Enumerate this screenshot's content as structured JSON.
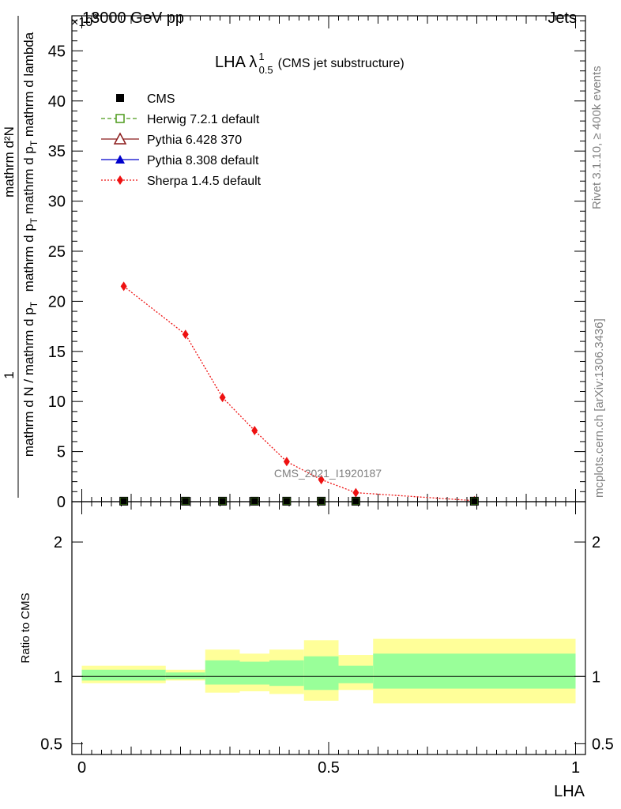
{
  "header": {
    "left": "13000 GeV pp",
    "right": "Jets",
    "exponent": "×10",
    "exponent_power": "6"
  },
  "side_text": {
    "rivet": "Rivet 3.1.10, ≥ 400k events",
    "mcplots": "mcplots.cern.ch [arXiv:1306.3436]"
  },
  "watermark": "CMS_2021_I1920187",
  "plot_title": {
    "main": "LHA λ",
    "sup": "1",
    "sub": "0.5",
    "suffix": "(CMS jet substructure)"
  },
  "legend": [
    {
      "name": "CMS",
      "color": "#000000",
      "marker": "square-filled",
      "line": "none"
    },
    {
      "name": "Herwig 7.2.1 default",
      "color": "#4c9a1a",
      "marker": "square-open",
      "line": "dashed"
    },
    {
      "name": "Pythia 6.428 370",
      "color": "#8b1a1a",
      "marker": "triangle-open",
      "line": "solid"
    },
    {
      "name": "Pythia 8.308 default",
      "color": "#0000cc",
      "marker": "triangle-filled",
      "line": "solid"
    },
    {
      "name": "Sherpa 1.4.5 default",
      "color": "#ee1111",
      "marker": "diamond-filled",
      "line": "dotted"
    }
  ],
  "chart_data": [
    {
      "type": "line",
      "panel": "main",
      "ylabel": {
        "numerator": "mathrm d²N",
        "denominator_a": "mathrm d p",
        "denominator_a_sub": "T",
        "denominator_b": " mathrm d p",
        "denominator_b_sub": "T",
        "denominator_c": " mathrm d lambda",
        "prefix_num": "1",
        "prefix_den": "mathrm d N / mathrm d p",
        "prefix_den_sub": "T"
      },
      "ylim": [
        0,
        48.5
      ],
      "yticks": [
        0,
        5,
        10,
        15,
        20,
        25,
        30,
        35,
        40,
        45
      ],
      "xlim": [
        -0.02,
        1.02
      ],
      "series": [
        {
          "name": "Sherpa 1.4.5 default",
          "x": [
            0.085,
            0.21,
            0.285,
            0.35,
            0.415,
            0.485,
            0.555,
            0.795
          ],
          "y": [
            21.5,
            16.7,
            10.4,
            7.1,
            4.0,
            2.2,
            0.9,
            0.1
          ]
        },
        {
          "name": "CMS",
          "x": [
            0.085,
            0.21,
            0.285,
            0.35,
            0.415,
            0.485,
            0.555,
            0.795
          ],
          "y": [
            0.05,
            0.05,
            0.05,
            0.05,
            0.05,
            0.05,
            0.05,
            0.05
          ]
        }
      ]
    },
    {
      "type": "area",
      "panel": "ratio",
      "ylabel": "Ratio to CMS",
      "xlabel": "LHA",
      "ylim": [
        0.42,
        2.3
      ],
      "yticks": [
        0.5,
        1,
        2
      ],
      "ytick_labels": [
        "0.5",
        "1",
        "2"
      ],
      "xlim": [
        -0.02,
        1.02
      ],
      "xticks": [
        0,
        0.5,
        1
      ],
      "xtick_labels": [
        "0",
        "0.5",
        "1"
      ],
      "reference": 1,
      "bins": [
        0,
        0.17,
        0.25,
        0.32,
        0.38,
        0.45,
        0.52,
        0.59,
        1.0
      ],
      "band_outer": [
        [
          0.95,
          1.08
        ],
        [
          0.97,
          1.05
        ],
        [
          0.88,
          1.2
        ],
        [
          0.89,
          1.17
        ],
        [
          0.87,
          1.2
        ],
        [
          0.82,
          1.27
        ],
        [
          0.9,
          1.16
        ],
        [
          0.8,
          1.28
        ]
      ],
      "band_inner": [
        [
          0.97,
          1.05
        ],
        [
          0.98,
          1.03
        ],
        [
          0.94,
          1.12
        ],
        [
          0.94,
          1.11
        ],
        [
          0.93,
          1.12
        ],
        [
          0.9,
          1.15
        ],
        [
          0.95,
          1.08
        ],
        [
          0.91,
          1.17
        ]
      ],
      "colors": {
        "outer": "#ffff99",
        "inner": "#99ff99"
      }
    }
  ]
}
